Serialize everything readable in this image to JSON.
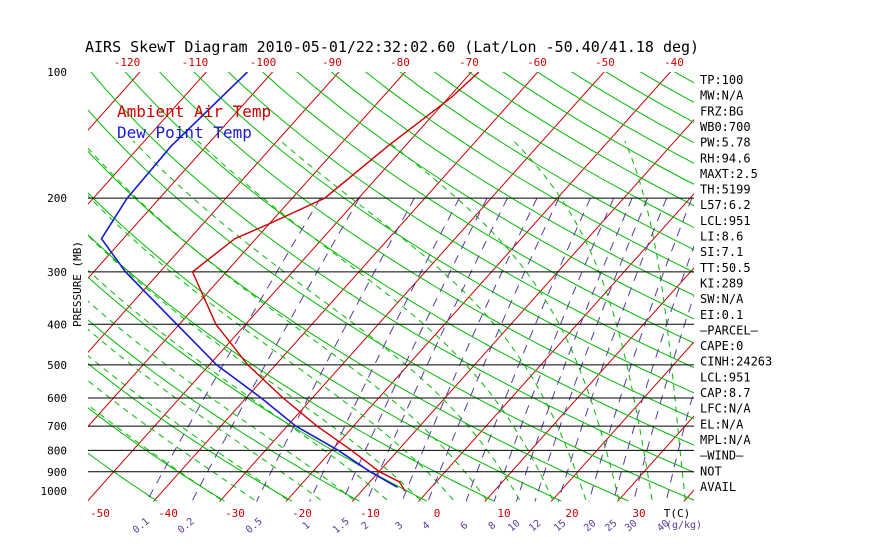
{
  "chart_data": {
    "type": "line",
    "chart_kind": "skew-T log-P diagram",
    "title": "AIRS SkewT Diagram 2010-05-01/22:32:02.60 (Lat/Lon -50.40/41.18 deg)",
    "ylabel": "PRESSURE (MB)",
    "pressure_scale": "log",
    "pressure_range": [
      100,
      1050
    ],
    "pressure_ticks": [
      100,
      200,
      300,
      400,
      500,
      600,
      700,
      800,
      900,
      1000
    ],
    "bottom_temp_ticks": [
      "-50",
      "-40",
      "-30",
      "-20",
      "-10",
      "0",
      "10",
      "20",
      "30"
    ],
    "bottom_temp_unit_label": "T(C)",
    "top_temp_ticks": [
      "-120",
      "-110",
      "-100",
      "-90",
      "-80",
      "-70",
      "-60",
      "-50",
      "-40"
    ],
    "mixing_ratio_ticks": [
      "0.1",
      "0.2",
      "0.5",
      "1",
      "1.5",
      "2",
      "3",
      "4",
      "6",
      "8",
      "10",
      "12",
      "15",
      "20",
      "25",
      "30",
      "40"
    ],
    "mixing_ratio_unit_label": "(g/kg)",
    "legend": [
      {
        "label": "Ambient Air Temp",
        "color": "#cc0000"
      },
      {
        "label": "Dew Point Temp",
        "color": "#1a1ad0"
      }
    ],
    "colors": {
      "isotherm": "#cc0000",
      "dry_adiabat": "#00bb00",
      "moist_adiabat": "#00bb00",
      "mixing_ratio": "#5a3a9a",
      "isobar": "#000000"
    },
    "series": [
      {
        "name": "Ambient Air Temp",
        "color": "#cc0000",
        "points": [
          {
            "p": 100,
            "t": -48.9
          },
          {
            "p": 115,
            "t": -49.6
          },
          {
            "p": 150,
            "t": -52.6
          },
          {
            "p": 200,
            "t": -55.1
          },
          {
            "p": 230,
            "t": -60.0
          },
          {
            "p": 250,
            "t": -63.2
          },
          {
            "p": 300,
            "t": -65.1
          },
          {
            "p": 400,
            "t": -54.5
          },
          {
            "p": 500,
            "t": -44.2
          },
          {
            "p": 600,
            "t": -34.4
          },
          {
            "p": 700,
            "t": -25.5
          },
          {
            "p": 800,
            "t": -17.0
          },
          {
            "p": 900,
            "t": -9.9
          },
          {
            "p": 950,
            "t": -5.6
          },
          {
            "p": 980,
            "t": -4.3
          },
          {
            "p": 1000,
            "t": -3.5
          }
        ]
      },
      {
        "name": "Dew Point Temp",
        "color": "#1a1ad0",
        "points": [
          {
            "p": 100,
            "t": -83.8
          },
          {
            "p": 150,
            "t": -85.3
          },
          {
            "p": 200,
            "t": -84.9
          },
          {
            "p": 250,
            "t": -83.3
          },
          {
            "p": 300,
            "t": -75.2
          },
          {
            "p": 400,
            "t": -60.4
          },
          {
            "p": 500,
            "t": -48.9
          },
          {
            "p": 600,
            "t": -37.7
          },
          {
            "p": 700,
            "t": -28.7
          },
          {
            "p": 800,
            "t": -19.0
          },
          {
            "p": 900,
            "t": -11.3
          },
          {
            "p": 980,
            "t": -5.1
          }
        ]
      }
    ],
    "indices": [
      "TP:100",
      "MW:N/A",
      "FRZ:BG",
      "WB0:700",
      "PW:5.78",
      "RH:94.6",
      "MAXT:2.5",
      "TH:5199",
      "L57:6.2",
      "LCL:951",
      "LI:8.6",
      "SI:7.1",
      "TT:50.5",
      "KI:289",
      "SW:N/A",
      "EI:0.1",
      "—PARCEL—",
      "CAPE:0",
      "CINH:24263",
      "LCL:951",
      "CAP:8.7",
      "LFC:N/A",
      "EL:N/A",
      "MPL:N/A",
      "—WIND—",
      "NOT",
      "AVAIL"
    ]
  }
}
